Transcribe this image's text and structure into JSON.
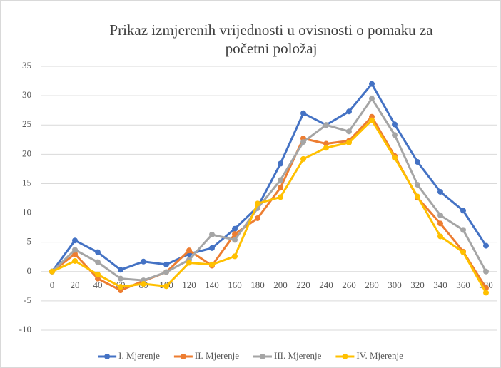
{
  "chart_data": {
    "type": "line",
    "title": [
      "Prikaz izmjerenih vrijednosti u ovisnosti o pomaku za",
      "početni položaj"
    ],
    "x": [
      0,
      20,
      40,
      60,
      80,
      100,
      120,
      140,
      160,
      180,
      200,
      220,
      240,
      260,
      280,
      300,
      320,
      340,
      360,
      380
    ],
    "xlim": [
      0,
      380
    ],
    "ylim": [
      -10,
      35
    ],
    "yticks": [
      -10,
      -5,
      0,
      5,
      10,
      15,
      20,
      25,
      30,
      35
    ],
    "grid": true,
    "legend": "bottom",
    "series": [
      {
        "name": "I. Mjerenje",
        "color": "#4472c4",
        "values": [
          0,
          5.3,
          3.3,
          0.3,
          1.7,
          1.2,
          3.0,
          4.0,
          7.3,
          11,
          18.4,
          27,
          25,
          27.3,
          32,
          25.1,
          18.7,
          13.6,
          10.4,
          4.4
        ]
      },
      {
        "name": "II. Mjerenje",
        "color": "#ed7d31",
        "values": [
          0,
          3.0,
          -1.2,
          -3.2,
          -1.6,
          -0.1,
          3.6,
          1.0,
          6.4,
          9.1,
          14.3,
          22.7,
          21.8,
          22.3,
          26.4,
          19.7,
          12.6,
          8.2,
          3.4,
          -2.8
        ]
      },
      {
        "name": "III. Mjerenje",
        "color": "#a5a5a5",
        "values": [
          0,
          3.7,
          1.6,
          -1.2,
          -1.5,
          -0.1,
          2.0,
          6.3,
          5.4,
          10.8,
          15.6,
          22.1,
          25.0,
          23.9,
          29.5,
          23.3,
          14.8,
          9.6,
          7.1,
          0
        ]
      },
      {
        "name": "IV. Mjerenje",
        "color": "#ffc000",
        "values": [
          0,
          1.8,
          -0.5,
          -2.6,
          -2.1,
          -2.5,
          1.5,
          1.2,
          2.6,
          11.6,
          12.7,
          19.2,
          21.1,
          22.0,
          25.8,
          19.4,
          12.8,
          6.0,
          3.3,
          -3.6
        ]
      }
    ]
  }
}
